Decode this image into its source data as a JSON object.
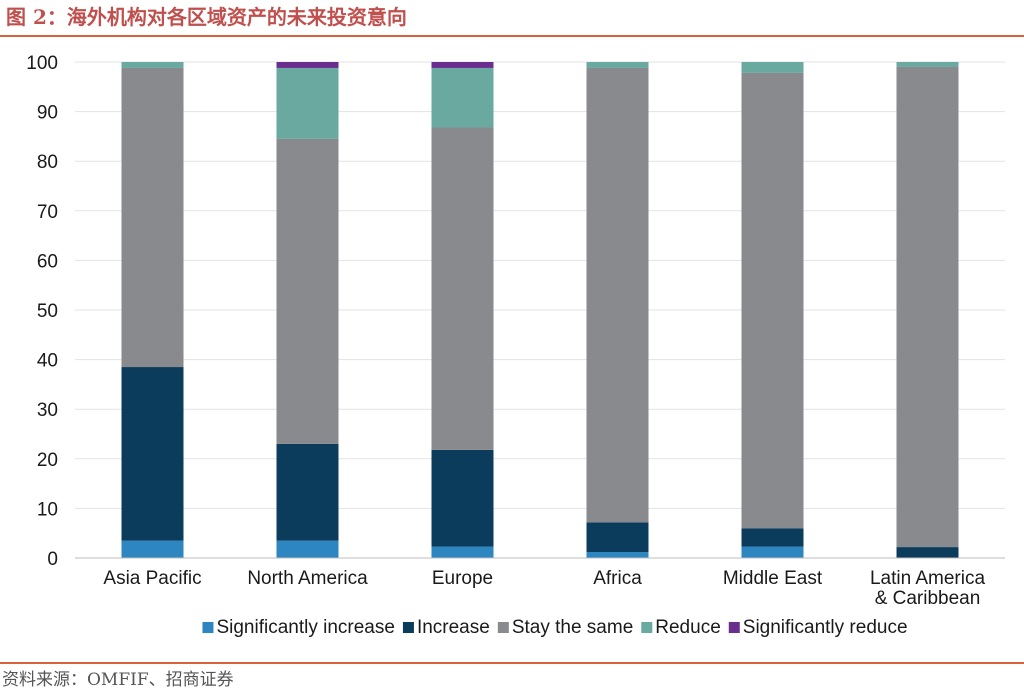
{
  "figure": {
    "title": "图 2：海外机构对各区域资产的未来投资意向",
    "source": "资料来源：OMFIF、招商证券"
  },
  "chart_data": {
    "type": "bar",
    "stacked": true,
    "categories": [
      [
        "Asia Pacific"
      ],
      [
        "North America"
      ],
      [
        "Europe"
      ],
      [
        "Africa"
      ],
      [
        "Middle East"
      ],
      [
        "Latin America",
        "& Caribbean"
      ]
    ],
    "series": [
      {
        "name": "Significantly increase",
        "color": "#2e86c1",
        "values": [
          3.5,
          3.5,
          2.3,
          1.2,
          2.3,
          0
        ]
      },
      {
        "name": "Increase",
        "color": "#0c3c5c",
        "values": [
          35,
          19.5,
          19.5,
          6,
          3.7,
          2.2
        ]
      },
      {
        "name": "Stay the same",
        "color": "#898a8e",
        "values": [
          60.3,
          61.5,
          65,
          91.6,
          91.8,
          96.8
        ]
      },
      {
        "name": "Reduce",
        "color": "#6aa9a0",
        "values": [
          1.2,
          14.3,
          12,
          1.2,
          2.2,
          1
        ]
      },
      {
        "name": "Significantly reduce",
        "color": "#6a2e8f",
        "values": [
          0,
          1.2,
          1.2,
          0,
          0,
          0
        ]
      }
    ],
    "ylim": [
      0,
      100
    ],
    "yticks": [
      "0",
      "10",
      "20",
      "30",
      "40",
      "50",
      "60",
      "70",
      "80",
      "90",
      "100"
    ],
    "grid": true,
    "legend": "bottom"
  }
}
